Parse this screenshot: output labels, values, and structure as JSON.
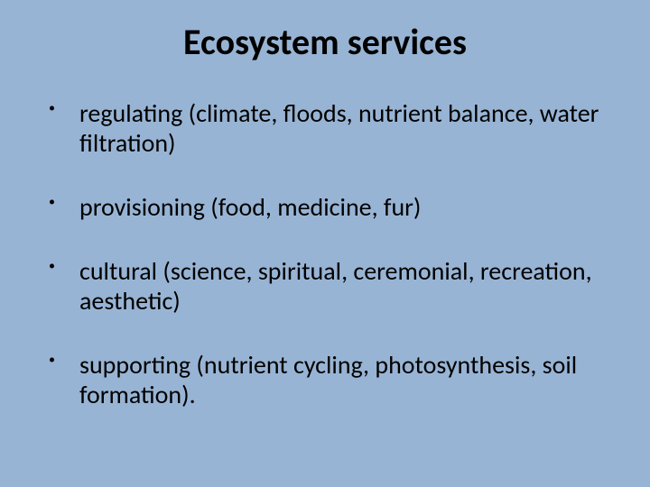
{
  "slide": {
    "background_color": "#98b4d4",
    "text_color": "#000000",
    "font_family": "Calibri, Arial, sans-serif",
    "title": "Ecosystem services",
    "title_fontsize": 40,
    "title_weight": 700,
    "body_fontsize": 28,
    "bullet_char": "•",
    "bullet_fontsize": 14,
    "items": [
      "regulating (climate, floods, nutrient balance, water filtration)",
      "provisioning (food, medicine, fur)",
      "cultural (science, spiritual, ceremonial, recreation, aesthetic)",
      "supporting (nutrient cycling, photosynthesis, soil formation)."
    ]
  }
}
